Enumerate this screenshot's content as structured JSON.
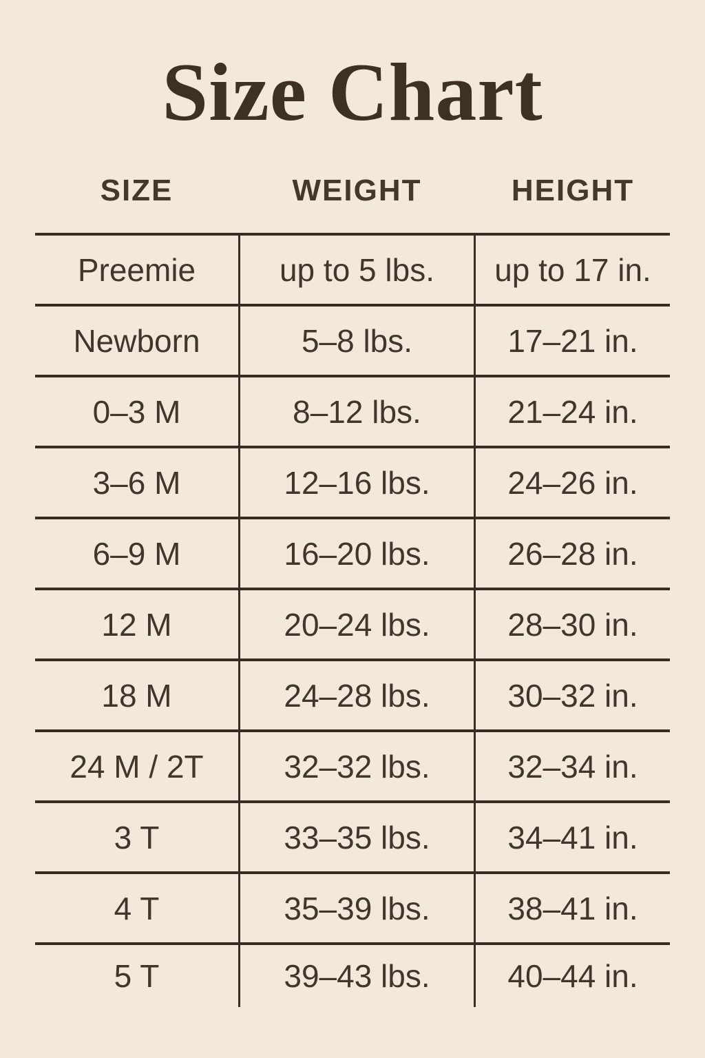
{
  "page": {
    "title": "Size Chart"
  },
  "colors": {
    "background": "#f2e9db",
    "text": "#42352a",
    "title_text": "#3e3122",
    "grid_lines": "#362c20"
  },
  "chart_data": {
    "type": "table",
    "title": "Size Chart",
    "columns": [
      "SIZE",
      "WEIGHT",
      "HEIGHT"
    ],
    "rows": [
      [
        "Preemie",
        "up to 5 lbs.",
        "up to 17 in."
      ],
      [
        "Newborn",
        "5–8 lbs.",
        "17–21 in."
      ],
      [
        "0–3 M",
        "8–12 lbs.",
        "21–24 in."
      ],
      [
        "3–6 M",
        "12–16 lbs.",
        "24–26 in."
      ],
      [
        "6–9 M",
        "16–20 lbs.",
        "26–28 in."
      ],
      [
        "12 M",
        "20–24 lbs.",
        "28–30 in."
      ],
      [
        "18 M",
        "24–28 lbs.",
        "30–32 in."
      ],
      [
        "24 M / 2T",
        "32–32 lbs.",
        "32–34 in."
      ],
      [
        "3 T",
        "33–35 lbs.",
        "34–41 in."
      ],
      [
        "4 T",
        "35–39 lbs.",
        "38–41 in."
      ],
      [
        "5 T",
        "39–43 lbs.",
        "40–44 in."
      ]
    ]
  }
}
